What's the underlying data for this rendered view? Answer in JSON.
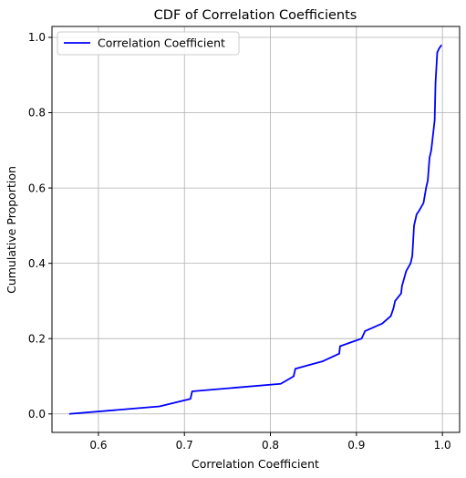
{
  "chart_data": {
    "type": "line",
    "title": "CDF of Correlation Coefficients",
    "xlabel": "Correlation Coefficient",
    "ylabel": "Cumulative Proportion",
    "xlim": [
      0.546,
      1.02
    ],
    "ylim": [
      -0.049,
      1.029
    ],
    "x_ticks": [
      0.6,
      0.7,
      0.8,
      0.9,
      1.0
    ],
    "x_tick_labels": [
      "0.6",
      "0.7",
      "0.8",
      "0.9",
      "1.0"
    ],
    "y_ticks": [
      0.0,
      0.2,
      0.4,
      0.6,
      0.8,
      1.0
    ],
    "y_tick_labels": [
      "0.0",
      "0.2",
      "0.4",
      "0.6",
      "0.8",
      "1.0"
    ],
    "grid": true,
    "legend_position": "top-left",
    "series": [
      {
        "name": "Correlation Coefficient",
        "color": "#0000ff",
        "x": [
          0.566,
          0.671,
          0.707,
          0.709,
          0.812,
          0.827,
          0.829,
          0.861,
          0.88,
          0.881,
          0.906,
          0.91,
          0.93,
          0.94,
          0.943,
          0.945,
          0.952,
          0.953,
          0.958,
          0.963,
          0.965,
          0.966,
          0.967,
          0.97,
          0.973,
          0.978,
          0.981,
          0.983,
          0.985,
          0.987,
          0.989,
          0.99,
          0.991,
          0.992,
          0.993,
          0.994,
          0.996,
          0.999
        ],
        "y": [
          0.0,
          0.02,
          0.04,
          0.06,
          0.08,
          0.1,
          0.12,
          0.14,
          0.16,
          0.18,
          0.2,
          0.22,
          0.24,
          0.26,
          0.28,
          0.3,
          0.32,
          0.34,
          0.38,
          0.4,
          0.42,
          0.46,
          0.5,
          0.53,
          0.54,
          0.56,
          0.6,
          0.62,
          0.68,
          0.7,
          0.74,
          0.76,
          0.78,
          0.88,
          0.92,
          0.96,
          0.97,
          0.98
        ]
      }
    ]
  }
}
